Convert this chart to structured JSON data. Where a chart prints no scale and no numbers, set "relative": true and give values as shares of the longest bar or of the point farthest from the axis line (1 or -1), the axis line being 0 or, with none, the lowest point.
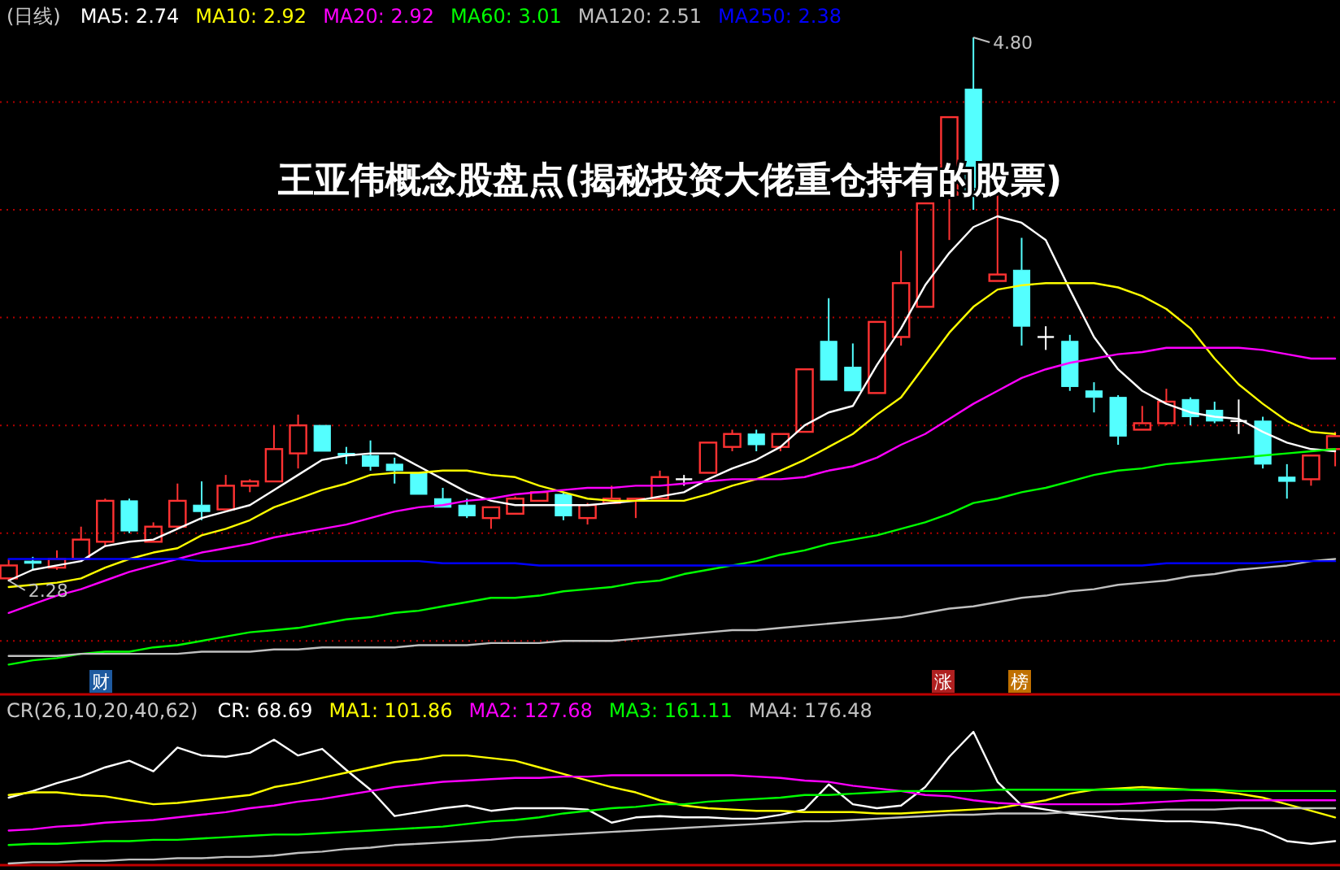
{
  "chart_data": [
    {
      "type": "candlestick",
      "title": "(日线)",
      "subtitle": "王亚伟概念股盘点(揭秘投资大佬重仓持有的股票)",
      "categories": [
        null,
        null,
        null,
        null,
        null,
        null,
        null,
        null,
        null,
        null,
        null,
        null,
        null,
        null,
        null,
        null,
        null,
        null,
        null,
        null,
        null,
        null,
        null,
        null,
        null,
        null,
        null,
        null,
        null,
        null,
        null,
        null,
        null,
        null,
        null,
        null,
        null,
        null,
        null,
        null,
        null,
        null,
        null,
        null,
        null,
        null,
        null,
        null,
        null,
        null,
        null,
        null,
        null,
        null,
        null,
        null
      ],
      "ohlc": [
        [
          2.29,
          2.38,
          2.28,
          2.35
        ],
        [
          2.37,
          2.39,
          2.33,
          2.36
        ],
        [
          2.34,
          2.42,
          2.33,
          2.38
        ],
        [
          2.38,
          2.53,
          2.38,
          2.47
        ],
        [
          2.46,
          2.66,
          2.44,
          2.65
        ],
        [
          2.65,
          2.66,
          2.5,
          2.51
        ],
        [
          2.46,
          2.55,
          2.46,
          2.53
        ],
        [
          2.53,
          2.73,
          2.52,
          2.65
        ],
        [
          2.63,
          2.74,
          2.56,
          2.6
        ],
        [
          2.61,
          2.77,
          2.61,
          2.72
        ],
        [
          2.72,
          2.75,
          2.69,
          2.74
        ],
        [
          2.74,
          3.0,
          2.74,
          2.89
        ],
        [
          2.87,
          3.05,
          2.8,
          3.0
        ],
        [
          3.0,
          3.0,
          2.88,
          2.88
        ],
        [
          2.87,
          2.9,
          2.82,
          2.86
        ],
        [
          2.86,
          2.93,
          2.79,
          2.81
        ],
        [
          2.82,
          2.85,
          2.73,
          2.79
        ],
        [
          2.78,
          2.78,
          2.68,
          2.68
        ],
        [
          2.66,
          2.71,
          2.62,
          2.62
        ],
        [
          2.63,
          2.66,
          2.57,
          2.58
        ],
        [
          2.57,
          2.62,
          2.52,
          2.62
        ],
        [
          2.59,
          2.67,
          2.59,
          2.66
        ],
        [
          2.65,
          2.69,
          2.65,
          2.69
        ],
        [
          2.68,
          2.69,
          2.56,
          2.58
        ],
        [
          2.57,
          2.64,
          2.54,
          2.63
        ],
        [
          2.64,
          2.72,
          2.64,
          2.66
        ],
        [
          2.65,
          2.66,
          2.57,
          2.66
        ],
        [
          2.66,
          2.79,
          2.66,
          2.76
        ],
        [
          2.75,
          2.77,
          2.72,
          2.75
        ],
        [
          2.78,
          2.92,
          2.78,
          2.92
        ],
        [
          2.9,
          2.98,
          2.88,
          2.96
        ],
        [
          2.96,
          2.98,
          2.88,
          2.91
        ],
        [
          2.9,
          2.96,
          2.88,
          2.96
        ],
        [
          2.97,
          3.26,
          2.97,
          3.26
        ],
        [
          3.39,
          3.59,
          3.21,
          3.21
        ],
        [
          3.27,
          3.38,
          3.16,
          3.16
        ],
        [
          3.15,
          3.48,
          3.15,
          3.48
        ],
        [
          3.41,
          3.81,
          3.37,
          3.66
        ],
        [
          3.55,
          4.03,
          3.55,
          4.03
        ],
        [
          4.07,
          4.43,
          3.86,
          4.43
        ],
        [
          4.56,
          4.8,
          4.0,
          4.08
        ],
        [
          3.67,
          4.08,
          3.67,
          3.7
        ],
        [
          3.72,
          3.87,
          3.37,
          3.46
        ],
        [
          3.41,
          3.46,
          3.35,
          3.41
        ],
        [
          3.39,
          3.42,
          3.16,
          3.18
        ],
        [
          3.16,
          3.2,
          3.06,
          3.13
        ],
        [
          3.13,
          3.14,
          2.91,
          2.95
        ],
        [
          2.98,
          3.09,
          2.98,
          3.01
        ],
        [
          3.01,
          3.17,
          3.0,
          3.11
        ],
        [
          3.12,
          3.13,
          3.0,
          3.04
        ],
        [
          3.07,
          3.11,
          3.01,
          3.02
        ],
        [
          3.02,
          3.12,
          2.96,
          3.02
        ],
        [
          3.02,
          3.04,
          2.8,
          2.82
        ],
        [
          2.76,
          2.82,
          2.66,
          2.74
        ],
        [
          2.75,
          2.86,
          2.72,
          2.86
        ],
        [
          2.89,
          2.97,
          2.81,
          2.95
        ]
      ],
      "colors": [
        "#ff3232",
        "#54ffff",
        "#ff3232",
        "#ff3232",
        "#ff3232",
        "#54ffff",
        "#ff3232",
        "#ff3232",
        "#54ffff",
        "#ff3232",
        "#ff3232",
        "#ff3232",
        "#ff3232",
        "#54ffff",
        "#54ffff",
        "#54ffff",
        "#54ffff",
        "#54ffff",
        "#54ffff",
        "#54ffff",
        "#ff3232",
        "#ff3232",
        "#ff3232",
        "#54ffff",
        "#ff3232",
        "#ff3232",
        "#ff3232",
        "#ff3232",
        "#ffffff",
        "#ff3232",
        "#ff3232",
        "#54ffff",
        "#ff3232",
        "#ff3232",
        "#54ffff",
        "#54ffff",
        "#ff3232",
        "#ff3232",
        "#ff3232",
        "#ff3232",
        "#54ffff",
        "#ff3232",
        "#54ffff",
        "#ffffff",
        "#54ffff",
        "#54ffff",
        "#54ffff",
        "#ff3232",
        "#ff3232",
        "#54ffff",
        "#54ffff",
        "#ffffff",
        "#54ffff",
        "#54ffff",
        "#ff3232",
        "#ff3232"
      ],
      "series": [
        {
          "name": "MA5: 2.74",
          "type": "line",
          "color": "#ffffff",
          "values": [
            2.28,
            2.33,
            2.35,
            2.37,
            2.44,
            2.46,
            2.47,
            2.52,
            2.57,
            2.6,
            2.63,
            2.7,
            2.77,
            2.84,
            2.86,
            2.87,
            2.87,
            2.81,
            2.75,
            2.69,
            2.65,
            2.63,
            2.63,
            2.63,
            2.63,
            2.64,
            2.65,
            2.67,
            2.69,
            2.75,
            2.8,
            2.84,
            2.9,
            3.0,
            3.06,
            3.09,
            3.28,
            3.45,
            3.65,
            3.8,
            3.92,
            3.97,
            3.94,
            3.86,
            3.63,
            3.41,
            3.26,
            3.16,
            3.1,
            3.06,
            3.04,
            3.03,
            2.97,
            2.92,
            2.89,
            2.88
          ]
        },
        {
          "name": "MA10: 2.92",
          "type": "line",
          "color": "#ffff00",
          "values": [
            2.25,
            2.26,
            2.27,
            2.29,
            2.34,
            2.38,
            2.41,
            2.43,
            2.49,
            2.52,
            2.56,
            2.62,
            2.66,
            2.7,
            2.73,
            2.77,
            2.78,
            2.78,
            2.79,
            2.79,
            2.77,
            2.76,
            2.72,
            2.69,
            2.66,
            2.65,
            2.65,
            2.65,
            2.65,
            2.68,
            2.72,
            2.75,
            2.79,
            2.84,
            2.9,
            2.96,
            3.05,
            3.13,
            3.28,
            3.43,
            3.55,
            3.63,
            3.65,
            3.66,
            3.66,
            3.66,
            3.64,
            3.6,
            3.54,
            3.45,
            3.31,
            3.19,
            3.1,
            3.02,
            2.97,
            2.96
          ]
        },
        {
          "name": "MA20: 2.92",
          "type": "line",
          "color": "#ff00ff",
          "values": [
            2.13,
            2.17,
            2.21,
            2.24,
            2.28,
            2.32,
            2.35,
            2.38,
            2.41,
            2.43,
            2.45,
            2.48,
            2.5,
            2.52,
            2.54,
            2.57,
            2.6,
            2.62,
            2.63,
            2.65,
            2.66,
            2.68,
            2.69,
            2.7,
            2.71,
            2.71,
            2.72,
            2.72,
            2.73,
            2.74,
            2.75,
            2.75,
            2.75,
            2.76,
            2.79,
            2.81,
            2.85,
            2.91,
            2.96,
            3.03,
            3.1,
            3.16,
            3.22,
            3.26,
            3.29,
            3.31,
            3.33,
            3.34,
            3.36,
            3.36,
            3.36,
            3.36,
            3.35,
            3.33,
            3.31,
            3.31
          ]
        },
        {
          "name": "MA60: 3.01",
          "type": "line",
          "color": "#00ff00",
          "values": [
            1.89,
            1.91,
            1.92,
            1.94,
            1.95,
            1.95,
            1.97,
            1.98,
            2.0,
            2.02,
            2.04,
            2.05,
            2.06,
            2.08,
            2.1,
            2.11,
            2.13,
            2.14,
            2.16,
            2.18,
            2.2,
            2.2,
            2.21,
            2.23,
            2.24,
            2.25,
            2.27,
            2.28,
            2.31,
            2.33,
            2.35,
            2.37,
            2.4,
            2.42,
            2.45,
            2.47,
            2.49,
            2.52,
            2.55,
            2.59,
            2.64,
            2.66,
            2.69,
            2.71,
            2.74,
            2.77,
            2.79,
            2.8,
            2.82,
            2.83,
            2.84,
            2.85,
            2.86,
            2.87,
            2.88,
            2.89
          ]
        },
        {
          "name": "MA120: 2.51",
          "type": "line",
          "color": "#c0c0c0",
          "values": [
            1.93,
            1.93,
            1.93,
            1.94,
            1.94,
            1.94,
            1.94,
            1.94,
            1.95,
            1.95,
            1.95,
            1.96,
            1.96,
            1.97,
            1.97,
            1.97,
            1.97,
            1.98,
            1.98,
            1.98,
            1.99,
            1.99,
            1.99,
            2.0,
            2.0,
            2.0,
            2.01,
            2.02,
            2.03,
            2.04,
            2.05,
            2.05,
            2.06,
            2.07,
            2.08,
            2.09,
            2.1,
            2.11,
            2.13,
            2.15,
            2.16,
            2.18,
            2.2,
            2.21,
            2.23,
            2.24,
            2.26,
            2.27,
            2.28,
            2.3,
            2.31,
            2.33,
            2.34,
            2.35,
            2.37,
            2.38
          ]
        },
        {
          "name": "MA250: 2.38",
          "type": "line",
          "color": "#0000ff",
          "values": [
            2.38,
            2.38,
            2.38,
            2.38,
            2.38,
            2.38,
            2.38,
            2.38,
            2.37,
            2.37,
            2.37,
            2.37,
            2.37,
            2.37,
            2.37,
            2.37,
            2.37,
            2.37,
            2.36,
            2.36,
            2.36,
            2.36,
            2.35,
            2.35,
            2.35,
            2.35,
            2.35,
            2.35,
            2.35,
            2.35,
            2.35,
            2.35,
            2.35,
            2.35,
            2.35,
            2.35,
            2.35,
            2.35,
            2.35,
            2.35,
            2.35,
            2.35,
            2.35,
            2.35,
            2.35,
            2.35,
            2.35,
            2.35,
            2.36,
            2.36,
            2.36,
            2.36,
            2.36,
            2.37,
            2.37,
            2.37
          ]
        }
      ],
      "yticks": [
        {
          "value": 2.0,
          "label": null
        },
        {
          "value": 2.5,
          "label": null
        },
        {
          "value": 3.0,
          "label": null
        },
        {
          "value": 3.5,
          "label": null
        },
        {
          "value": 4.0,
          "label": null
        },
        {
          "value": 4.5,
          "label": null
        }
      ],
      "grid": "y",
      "legend": "top left",
      "annotations": [
        "4.80",
        "2.28",
        "财",
        "涨",
        "榜"
      ]
    },
    {
      "type": "line",
      "relative": true,
      "title": "CR(26,10,20,40,62)",
      "categories": [
        null,
        null,
        null,
        null,
        null,
        null,
        null,
        null,
        null,
        null,
        null,
        null,
        null,
        null,
        null,
        null,
        null,
        null,
        null,
        null,
        null,
        null,
        null,
        null,
        null,
        null,
        null,
        null,
        null,
        null,
        null,
        null,
        null,
        null,
        null,
        null,
        null,
        null,
        null,
        null,
        null,
        null,
        null,
        null,
        null,
        null,
        null,
        null,
        null,
        null,
        null,
        null,
        null,
        null,
        null,
        null
      ],
      "series": [
        {
          "name": "CR: 68.69",
          "color": "#ffffff",
          "values": [
            0.5,
            0.55,
            0.61,
            0.66,
            0.73,
            0.78,
            0.7,
            0.88,
            0.82,
            0.81,
            0.84,
            0.94,
            0.82,
            0.87,
            0.71,
            0.56,
            0.36,
            0.39,
            0.42,
            0.44,
            0.4,
            0.42,
            0.42,
            0.42,
            0.41,
            0.31,
            0.35,
            0.36,
            0.35,
            0.35,
            0.34,
            0.34,
            0.37,
            0.41,
            0.6,
            0.45,
            0.42,
            0.44,
            0.58,
            0.81,
            1.0,
            0.62,
            0.44,
            0.41,
            0.38,
            0.36,
            0.34,
            0.33,
            0.32,
            0.32,
            0.31,
            0.29,
            0.25,
            0.17,
            0.15,
            0.17
          ]
        },
        {
          "name": "MA1: 101.86",
          "color": "#ffff00",
          "values": [
            0.52,
            0.54,
            0.54,
            0.52,
            0.51,
            0.48,
            0.45,
            0.46,
            0.48,
            0.5,
            0.52,
            0.58,
            0.61,
            0.65,
            0.69,
            0.73,
            0.77,
            0.79,
            0.82,
            0.82,
            0.8,
            0.78,
            0.73,
            0.68,
            0.63,
            0.58,
            0.54,
            0.48,
            0.44,
            0.42,
            0.41,
            0.4,
            0.4,
            0.39,
            0.39,
            0.39,
            0.38,
            0.38,
            0.39,
            0.4,
            0.41,
            0.42,
            0.45,
            0.48,
            0.53,
            0.56,
            0.57,
            0.58,
            0.57,
            0.56,
            0.55,
            0.53,
            0.5,
            0.45,
            0.4,
            0.35
          ]
        },
        {
          "name": "MA2: 127.68",
          "color": "#ff00ff",
          "values": [
            0.25,
            0.26,
            0.28,
            0.29,
            0.31,
            0.32,
            0.33,
            0.35,
            0.37,
            0.39,
            0.42,
            0.44,
            0.47,
            0.49,
            0.52,
            0.55,
            0.58,
            0.6,
            0.62,
            0.63,
            0.64,
            0.65,
            0.65,
            0.66,
            0.66,
            0.67,
            0.67,
            0.67,
            0.67,
            0.67,
            0.67,
            0.66,
            0.65,
            0.63,
            0.62,
            0.59,
            0.57,
            0.55,
            0.52,
            0.51,
            0.48,
            0.46,
            0.45,
            0.45,
            0.45,
            0.45,
            0.45,
            0.46,
            0.47,
            0.48,
            0.48,
            0.48,
            0.48,
            0.48,
            0.48,
            0.48
          ]
        },
        {
          "name": "MA3: 161.11",
          "color": "#00ff00",
          "values": [
            0.14,
            0.15,
            0.15,
            0.16,
            0.17,
            0.17,
            0.18,
            0.18,
            0.19,
            0.2,
            0.21,
            0.22,
            0.22,
            0.23,
            0.24,
            0.25,
            0.26,
            0.27,
            0.28,
            0.3,
            0.32,
            0.33,
            0.35,
            0.38,
            0.4,
            0.42,
            0.43,
            0.45,
            0.45,
            0.47,
            0.48,
            0.49,
            0.5,
            0.52,
            0.52,
            0.53,
            0.54,
            0.55,
            0.55,
            0.55,
            0.55,
            0.56,
            0.56,
            0.56,
            0.56,
            0.56,
            0.56,
            0.56,
            0.56,
            0.56,
            0.56,
            0.55,
            0.55,
            0.55,
            0.55,
            0.55
          ]
        },
        {
          "name": "MA4: 176.48",
          "color": "#c0c0c0",
          "values": [
            0.0,
            0.01,
            0.01,
            0.02,
            0.02,
            0.03,
            0.03,
            0.04,
            0.04,
            0.05,
            0.05,
            0.06,
            0.08,
            0.09,
            0.11,
            0.12,
            0.14,
            0.15,
            0.16,
            0.17,
            0.18,
            0.2,
            0.21,
            0.22,
            0.23,
            0.24,
            0.25,
            0.26,
            0.27,
            0.28,
            0.29,
            0.3,
            0.31,
            0.32,
            0.32,
            0.33,
            0.34,
            0.35,
            0.36,
            0.37,
            0.37,
            0.38,
            0.38,
            0.38,
            0.39,
            0.39,
            0.4,
            0.4,
            0.41,
            0.41,
            0.41,
            0.42,
            0.42,
            0.42,
            0.42,
            0.42
          ]
        }
      ],
      "legend": "top left"
    }
  ]
}
